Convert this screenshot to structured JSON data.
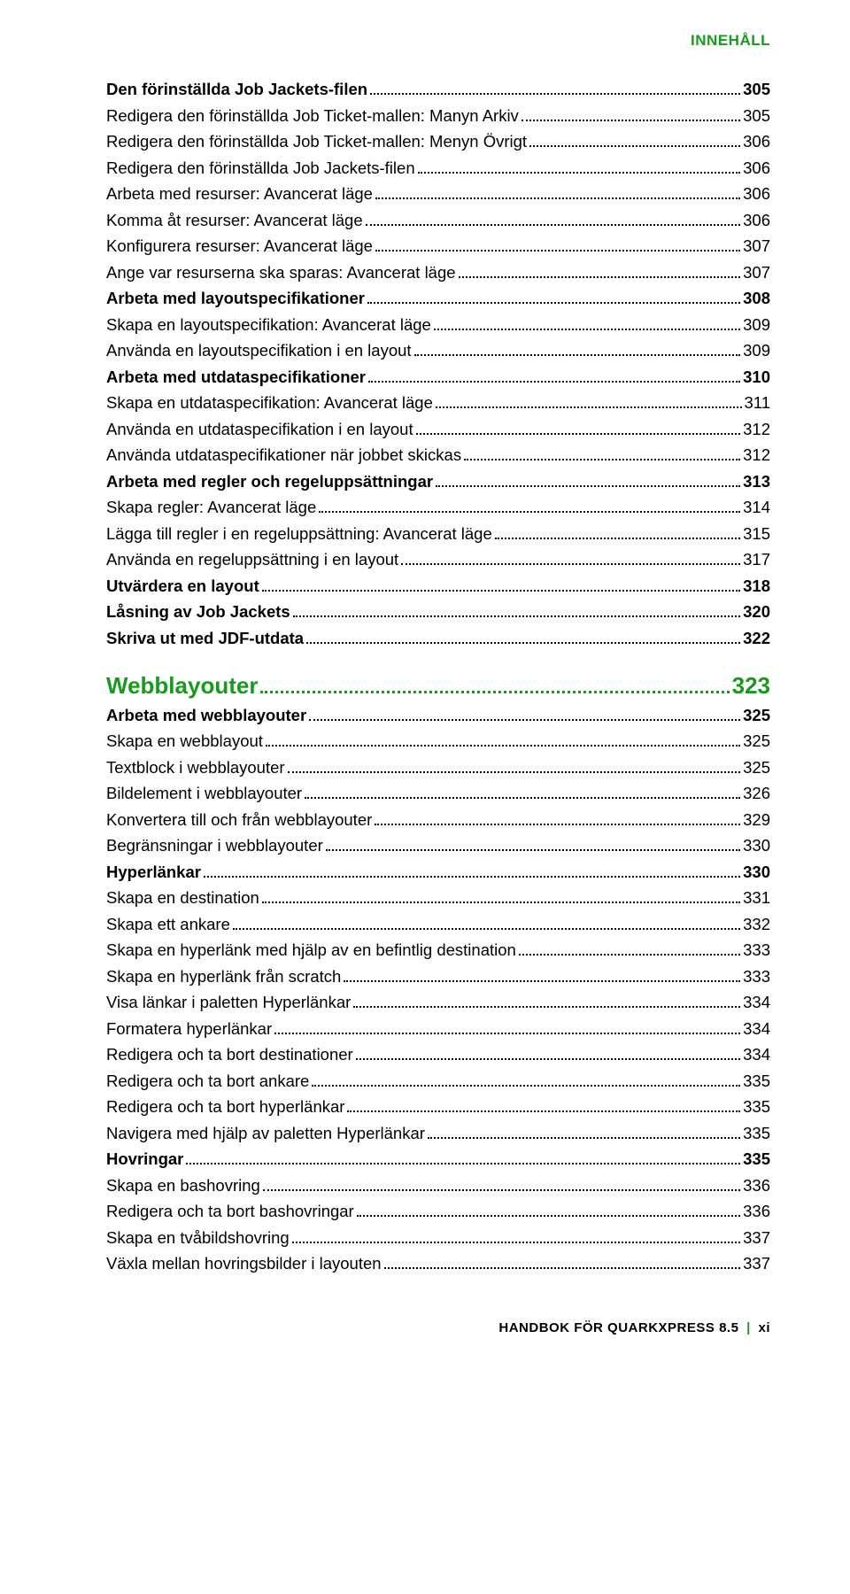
{
  "header": "INNEHÅLL",
  "toc1": [
    {
      "label": "Den förinställda Job Jackets-filen",
      "pg": "305",
      "bold": true
    },
    {
      "label": "Redigera den förinställda Job Ticket-mallen: Manyn Arkiv",
      "pg": "305",
      "bold": false
    },
    {
      "label": "Redigera den förinställda Job Ticket-mallen: Menyn Övrigt",
      "pg": "306",
      "bold": false
    },
    {
      "label": "Redigera den förinställda Job Jackets-filen",
      "pg": "306",
      "bold": false
    },
    {
      "label": "Arbeta med resurser: Avancerat läge",
      "pg": "306",
      "bold": false
    },
    {
      "label": "Komma åt resurser: Avancerat läge",
      "pg": "306",
      "bold": false
    },
    {
      "label": "Konfigurera resurser: Avancerat läge",
      "pg": "307",
      "bold": false
    },
    {
      "label": "Ange var resurserna ska sparas: Avancerat läge",
      "pg": "307",
      "bold": false
    },
    {
      "label": "Arbeta med layoutspecifikationer",
      "pg": "308",
      "bold": true
    },
    {
      "label": "Skapa en layoutspecifikation: Avancerat läge",
      "pg": "309",
      "bold": false
    },
    {
      "label": "Använda en layoutspecifikation i en layout",
      "pg": "309",
      "bold": false
    },
    {
      "label": "Arbeta med utdataspecifikationer",
      "pg": "310",
      "bold": true
    },
    {
      "label": "Skapa en utdataspecifikation: Avancerat läge",
      "pg": "311",
      "bold": false
    },
    {
      "label": "Använda en utdataspecifikation i en layout",
      "pg": "312",
      "bold": false
    },
    {
      "label": "Använda utdataspecifikationer när jobbet skickas",
      "pg": "312",
      "bold": false
    },
    {
      "label": "Arbeta med regler och regeluppsättningar",
      "pg": "313",
      "bold": true
    },
    {
      "label": "Skapa regler: Avancerat läge",
      "pg": "314",
      "bold": false
    },
    {
      "label": "Lägga till regler i en regeluppsättning: Avancerat läge",
      "pg": "315",
      "bold": false
    },
    {
      "label": "Använda en regeluppsättning i en layout",
      "pg": "317",
      "bold": false
    },
    {
      "label": "Utvärdera en layout",
      "pg": "318",
      "bold": true
    },
    {
      "label": "Låsning av Job Jackets",
      "pg": "320",
      "bold": true
    },
    {
      "label": "Skriva ut med JDF-utdata",
      "pg": "322",
      "bold": true
    }
  ],
  "section": {
    "label": "Webblayouter",
    "pg": "323"
  },
  "toc2": [
    {
      "label": "Arbeta med webblayouter",
      "pg": "325",
      "bold": true
    },
    {
      "label": "Skapa en webblayout",
      "pg": "325",
      "bold": false
    },
    {
      "label": "Textblock i webblayouter",
      "pg": "325",
      "bold": false
    },
    {
      "label": "Bildelement i webblayouter",
      "pg": "326",
      "bold": false
    },
    {
      "label": "Konvertera till och från webblayouter",
      "pg": "329",
      "bold": false
    },
    {
      "label": "Begränsningar i webblayouter",
      "pg": "330",
      "bold": false
    },
    {
      "label": "Hyperlänkar",
      "pg": "330",
      "bold": true
    },
    {
      "label": "Skapa en destination",
      "pg": "331",
      "bold": false
    },
    {
      "label": "Skapa ett ankare",
      "pg": "332",
      "bold": false
    },
    {
      "label": "Skapa en hyperlänk med hjälp av en befintlig destination",
      "pg": "333",
      "bold": false
    },
    {
      "label": "Skapa en hyperlänk från scratch",
      "pg": "333",
      "bold": false
    },
    {
      "label": "Visa länkar i paletten Hyperlänkar",
      "pg": "334",
      "bold": false
    },
    {
      "label": "Formatera hyperlänkar",
      "pg": "334",
      "bold": false
    },
    {
      "label": "Redigera och ta bort destinationer",
      "pg": "334",
      "bold": false
    },
    {
      "label": "Redigera och ta bort ankare",
      "pg": "335",
      "bold": false
    },
    {
      "label": "Redigera och ta bort hyperlänkar",
      "pg": "335",
      "bold": false
    },
    {
      "label": "Navigera med hjälp av paletten Hyperlänkar",
      "pg": "335",
      "bold": false
    },
    {
      "label": "Hovringar",
      "pg": "335",
      "bold": true
    },
    {
      "label": "Skapa en bashovring",
      "pg": "336",
      "bold": false
    },
    {
      "label": "Redigera och ta bort bashovringar",
      "pg": "336",
      "bold": false
    },
    {
      "label": "Skapa en tvåbildshovring",
      "pg": "337",
      "bold": false
    },
    {
      "label": "Växla mellan hovringsbilder i layouten",
      "pg": "337",
      "bold": false
    }
  ],
  "footer": {
    "book": "HANDBOK FÖR QUARKXPRESS 8.5",
    "page": "xi"
  }
}
